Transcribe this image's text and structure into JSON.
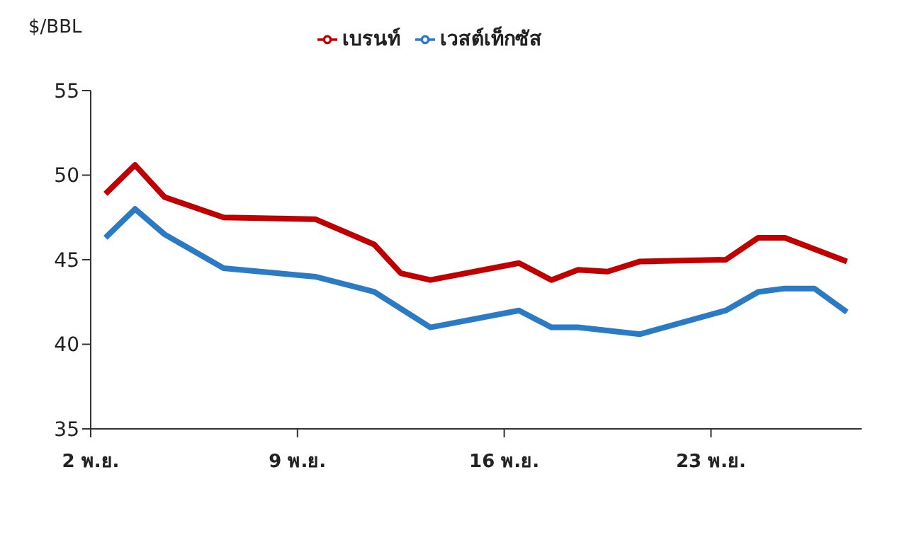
{
  "chart_data": {
    "type": "line",
    "ylabel": "$/BBL",
    "xlim": [
      2,
      28.1
    ],
    "xticks": [
      {
        "value": 2,
        "label": "2 พ.ย."
      },
      {
        "value": 9,
        "label": "9 พ.ย."
      },
      {
        "value": 16,
        "label": "16 พ.ย."
      },
      {
        "value": 23,
        "label": "23 พ.ย."
      }
    ],
    "ylim": [
      35,
      55
    ],
    "yticks": [
      35,
      40,
      45,
      50,
      55
    ],
    "grid": false,
    "legend": "top",
    "marker": "none",
    "line_style": "solid",
    "series": [
      {
        "name": "เวสต์เท็กซัส",
        "color": "#2a7bc4",
        "x": [
          2.5,
          3.5,
          4.5,
          6.5,
          9.6,
          11.6,
          13.5,
          16.5,
          17.6,
          18.5,
          20.6,
          23.5,
          24.6,
          25.5,
          26.5,
          27.6
        ],
        "values": [
          46.3,
          48.0,
          46.5,
          44.5,
          44.0,
          43.1,
          41.0,
          42.0,
          41.0,
          41.0,
          40.6,
          42.0,
          43.1,
          43.3,
          43.3,
          41.9
        ]
      },
      {
        "name": "เบรนท์",
        "color": "#c00000",
        "x": [
          2.5,
          3.5,
          4.5,
          6.5,
          9.6,
          11.6,
          12.5,
          13.5,
          16.5,
          17.6,
          18.5,
          19.5,
          20.6,
          23.5,
          24.6,
          25.5,
          27.6
        ],
        "values": [
          48.9,
          50.6,
          48.7,
          47.5,
          47.4,
          45.9,
          44.2,
          43.8,
          44.8,
          43.8,
          44.4,
          44.3,
          44.9,
          45.0,
          46.3,
          46.3,
          44.9
        ]
      }
    ]
  }
}
